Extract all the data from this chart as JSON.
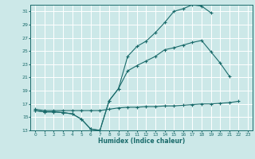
{
  "xlabel": "Humidex (Indice chaleur)",
  "bg_color": "#cce8e8",
  "grid_color": "#ffffff",
  "line_color": "#1a6b6b",
  "xlim": [
    -0.5,
    23.5
  ],
  "ylim": [
    13,
    32
  ],
  "xticks": [
    0,
    1,
    2,
    3,
    4,
    5,
    6,
    7,
    8,
    9,
    10,
    11,
    12,
    13,
    14,
    15,
    16,
    17,
    18,
    19,
    20,
    21,
    22,
    23
  ],
  "yticks": [
    13,
    15,
    17,
    19,
    21,
    23,
    25,
    27,
    29,
    31
  ],
  "curve1_x": [
    0,
    1,
    2,
    3,
    4,
    5,
    6,
    7,
    8,
    9,
    10,
    11,
    12,
    13,
    14,
    15,
    16,
    17,
    18,
    19
  ],
  "curve1_y": [
    16,
    15.8,
    15.8,
    15.7,
    15.5,
    14.7,
    13.2,
    13.0,
    17.5,
    19.3,
    24.2,
    25.7,
    26.5,
    27.8,
    29.3,
    31.0,
    31.4,
    32.0,
    31.8,
    30.8
  ],
  "curve2_x": [
    0,
    1,
    2,
    3,
    4,
    5,
    6,
    7,
    8,
    9,
    10,
    11,
    12,
    13,
    14,
    15,
    16,
    17,
    18,
    19,
    20,
    21
  ],
  "curve2_y": [
    16,
    15.8,
    15.8,
    15.7,
    15.5,
    14.7,
    13.2,
    13.0,
    17.5,
    19.3,
    22.0,
    22.8,
    23.5,
    24.2,
    25.2,
    25.5,
    25.9,
    26.3,
    26.6,
    24.9,
    23.2,
    21.2
  ],
  "curve3_x": [
    0,
    1,
    2,
    3,
    4,
    5,
    6,
    7,
    8,
    9,
    10,
    11,
    12,
    13,
    14,
    15,
    16,
    17,
    18,
    19,
    20,
    21,
    22
  ],
  "curve3_y": [
    16.2,
    16.0,
    16.0,
    16.0,
    16.0,
    16.0,
    16.0,
    16.0,
    16.2,
    16.4,
    16.5,
    16.5,
    16.6,
    16.6,
    16.7,
    16.7,
    16.8,
    16.9,
    17.0,
    17.0,
    17.1,
    17.2,
    17.4
  ]
}
